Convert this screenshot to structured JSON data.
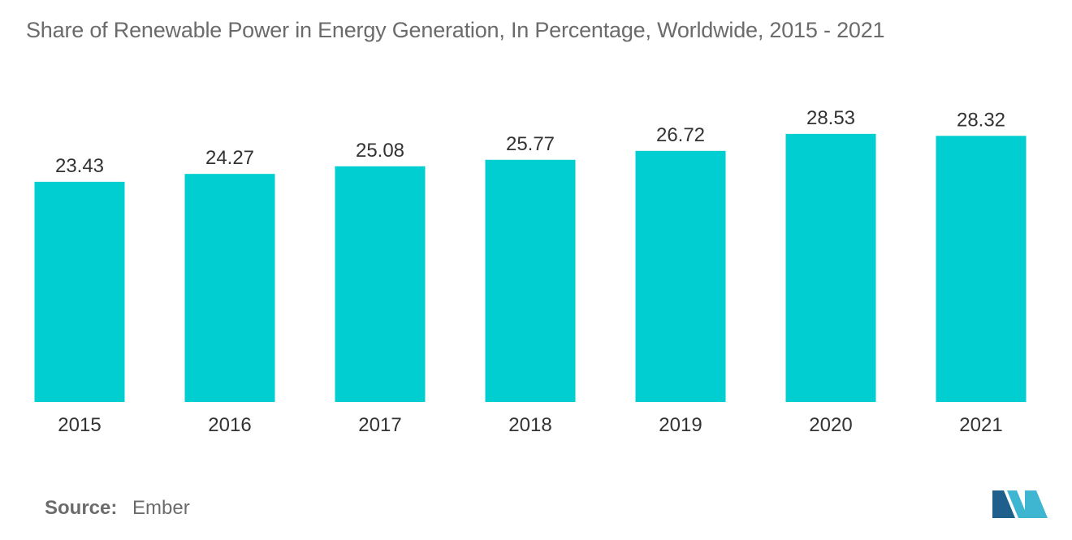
{
  "chart_data": {
    "type": "bar",
    "title": "Share of Renewable Power in Energy Generation, In Percentage, Worldwide, 2015 - 2021",
    "categories": [
      "2015",
      "2016",
      "2017",
      "2018",
      "2019",
      "2020",
      "2021"
    ],
    "values": [
      23.43,
      24.27,
      25.08,
      25.77,
      26.72,
      28.53,
      28.32
    ],
    "value_labels": [
      "23.43",
      "24.27",
      "25.08",
      "25.77",
      "26.72",
      "28.53",
      "28.32"
    ],
    "xlabel": "",
    "ylabel": "",
    "ylim": [
      0,
      35
    ],
    "grid": false,
    "legend": "none",
    "bar_color": "#00CED1"
  },
  "source": {
    "label": "Source:",
    "value": "Ember"
  },
  "logo": {
    "colors": [
      "#1F5F8B",
      "#3FB6D1"
    ]
  }
}
